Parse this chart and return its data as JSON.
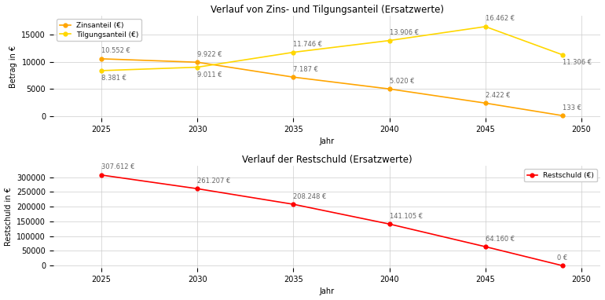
{
  "years": [
    2025,
    2030,
    2035,
    2040,
    2045,
    2049
  ],
  "zinsanteil": [
    10552,
    9922,
    7187,
    5020,
    2422,
    133
  ],
  "tilgungsanteil": [
    8381,
    9011,
    11746,
    13906,
    16462,
    11306
  ],
  "restschuld": [
    307612,
    261207,
    208248,
    141105,
    64160,
    0
  ],
  "zins_labels": [
    "10.552 €",
    "9.922 €",
    "7.187 €",
    "5.020 €",
    "2.422 €",
    "133 €"
  ],
  "tilg_labels": [
    "8.381 €",
    "9.011 €",
    "11.746 €",
    "13.906 €",
    "16.462 €",
    "11.306 €"
  ],
  "rest_labels": [
    "307.612 €",
    "261.207 €",
    "208.248 €",
    "141.105 €",
    "64.160 €",
    "0 €"
  ],
  "title_top": "Verlauf von Zins- und Tilgungsanteil (Ersatzwerte)",
  "title_bot": "Verlauf der Restschuld (Ersatzwerte)",
  "xlabel": "Jahr",
  "ylabel_top": "Betrag in €",
  "ylabel_bot": "Restschuld in €",
  "zins_color": "#FFA500",
  "tilg_color": "#FFD700",
  "rest_color": "#FF0000",
  "bg_color": "#FFFFFF",
  "grid_color": "#CCCCCC"
}
